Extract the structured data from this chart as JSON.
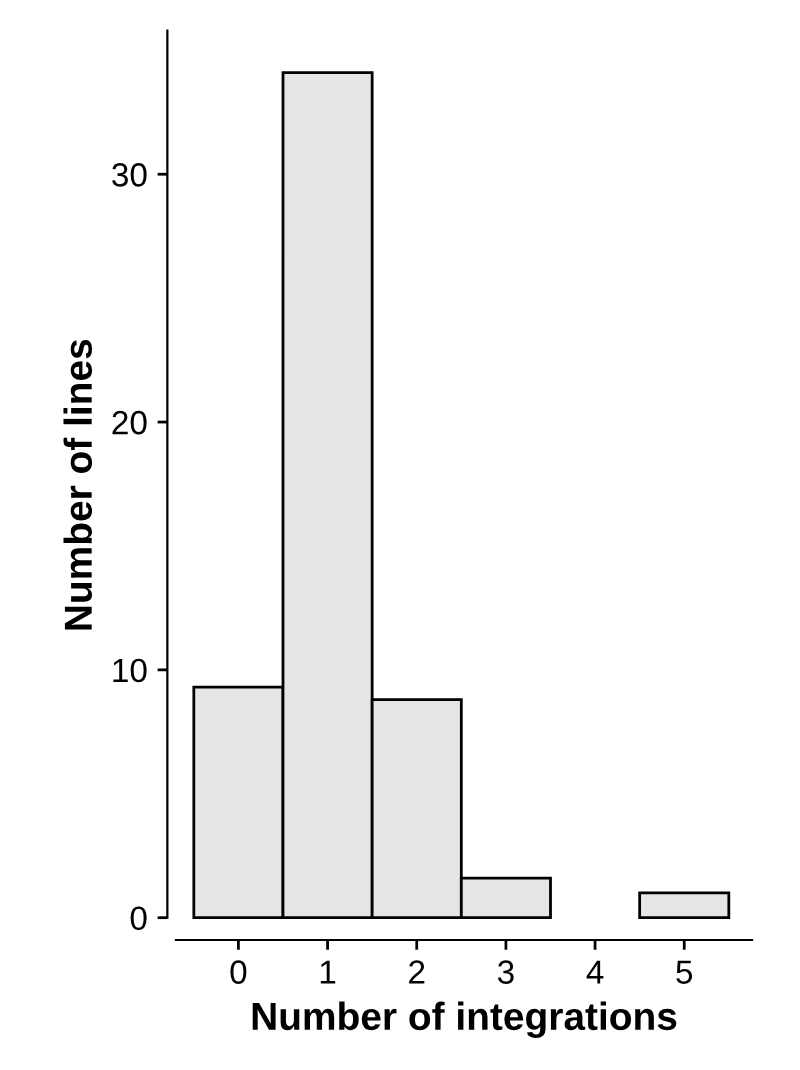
{
  "chart_data": {
    "type": "bar",
    "xlabel": "Number of integrations",
    "ylabel": "Number of lines",
    "categories": [
      "0",
      "1",
      "2",
      "3",
      "4",
      "5"
    ],
    "values": [
      9.3,
      34.1,
      8.8,
      1.6,
      null,
      1.0
    ],
    "color": "#e5e5e5",
    "ylim": [
      -0.9,
      35.8
    ],
    "yticks": [
      0,
      10,
      20,
      30
    ],
    "grid": false,
    "legend": false
  }
}
